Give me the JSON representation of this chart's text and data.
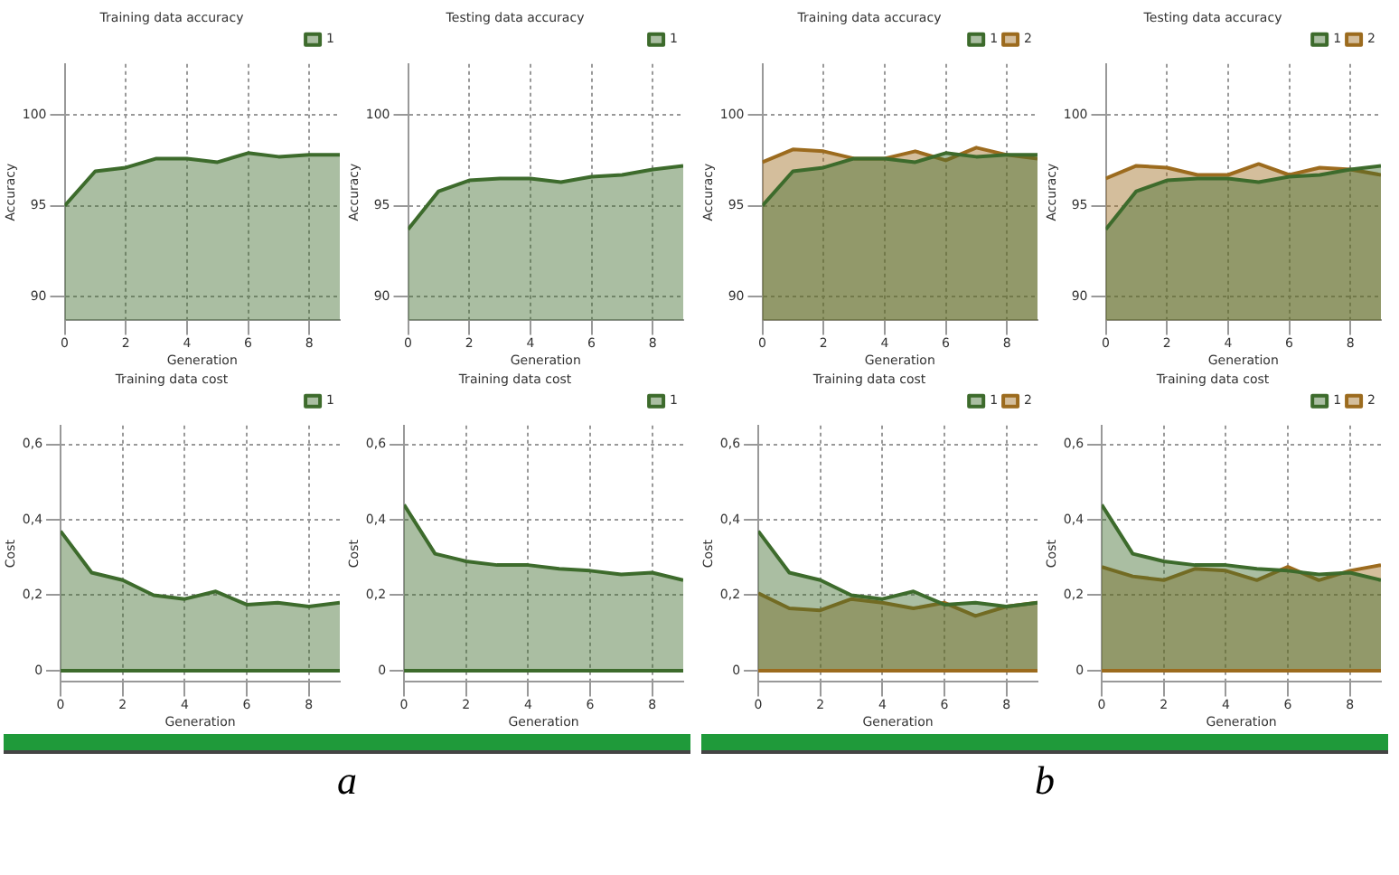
{
  "chart_data": [
    {
      "type": "area",
      "title": "Training data accuracy",
      "xlabel": "Generation",
      "ylabel": "Accuracy",
      "x": [
        0,
        1,
        2,
        3,
        4,
        5,
        6,
        7,
        8,
        9
      ],
      "xlim": [
        0,
        9
      ],
      "xticks": [
        0,
        2,
        4,
        6,
        8
      ],
      "ylim": [
        88.7,
        102.8
      ],
      "yticks": [
        90,
        95,
        100
      ],
      "grid": true,
      "legend": "top right",
      "marker": "none",
      "series": [
        {
          "name": "1",
          "color": "#3d6b2c",
          "values": [
            95.0,
            96.9,
            97.1,
            97.6,
            97.6,
            97.4,
            97.9,
            97.7,
            97.8,
            97.8
          ]
        }
      ]
    },
    {
      "type": "area",
      "title": "Testing data accuracy",
      "xlabel": "Generation",
      "ylabel": "Accuracy",
      "x": [
        0,
        1,
        2,
        3,
        4,
        5,
        6,
        7,
        8,
        9
      ],
      "xlim": [
        0,
        9
      ],
      "xticks": [
        0,
        2,
        4,
        6,
        8
      ],
      "ylim": [
        88.7,
        102.8
      ],
      "yticks": [
        90,
        95,
        100
      ],
      "grid": true,
      "legend": "top right",
      "marker": "none",
      "series": [
        {
          "name": "1",
          "color": "#3d6b2c",
          "values": [
            93.7,
            95.8,
            96.4,
            96.5,
            96.5,
            96.3,
            96.6,
            96.7,
            97.0,
            97.2
          ]
        }
      ]
    },
    {
      "type": "area",
      "title": "Training data cost",
      "xlabel": "Generation",
      "ylabel": "Cost",
      "x": [
        0,
        1,
        2,
        3,
        4,
        5,
        6,
        7,
        8,
        9
      ],
      "xlim": [
        0,
        9
      ],
      "xticks": [
        0,
        2,
        4,
        6,
        8
      ],
      "ylim": [
        -0.03,
        0.65
      ],
      "yticks": [
        0,
        {
          "value": 0.2,
          "label": "0,2"
        },
        {
          "value": 0.4,
          "label": "0,4"
        },
        {
          "value": 0.6,
          "label": "0,6"
        }
      ],
      "grid": true,
      "legend": "top right",
      "marker": "none",
      "ref_lines": [
        {
          "axis": "y",
          "value": 0,
          "color": "#3d6b2c"
        }
      ],
      "annotations": [
        "a"
      ],
      "series": [
        {
          "name": "1",
          "color": "#3d6b2c",
          "values": [
            0.37,
            0.26,
            0.24,
            0.2,
            0.19,
            0.21,
            0.175,
            0.18,
            0.17,
            0.18
          ]
        }
      ]
    },
    {
      "type": "area",
      "title": "Training data cost",
      "xlabel": "Generation",
      "ylabel": "Cost",
      "x": [
        0,
        1,
        2,
        3,
        4,
        5,
        6,
        7,
        8,
        9
      ],
      "xlim": [
        0,
        9
      ],
      "xticks": [
        0,
        2,
        4,
        6,
        8
      ],
      "ylim": [
        -0.03,
        0.65
      ],
      "yticks": [
        0,
        {
          "value": 0.2,
          "label": "0,2"
        },
        {
          "value": 0.4,
          "label": "0,4"
        },
        {
          "value": 0.6,
          "label": "0,6"
        }
      ],
      "grid": true,
      "legend": "top right",
      "marker": "none",
      "ref_lines": [
        {
          "axis": "y",
          "value": 0,
          "color": "#3d6b2c"
        }
      ],
      "series": [
        {
          "name": "1",
          "color": "#3d6b2c",
          "values": [
            0.44,
            0.31,
            0.29,
            0.28,
            0.28,
            0.27,
            0.265,
            0.255,
            0.26,
            0.24
          ]
        }
      ]
    },
    {
      "type": "area",
      "title": "Training data accuracy",
      "xlabel": "Generation",
      "ylabel": "Accuracy",
      "x": [
        0,
        1,
        2,
        3,
        4,
        5,
        6,
        7,
        8,
        9
      ],
      "xlim": [
        0,
        9
      ],
      "xticks": [
        0,
        2,
        4,
        6,
        8
      ],
      "ylim": [
        88.7,
        102.8
      ],
      "yticks": [
        90,
        95,
        100
      ],
      "grid": true,
      "legend": "top right",
      "marker": "none",
      "series": [
        {
          "name": "1",
          "color": "#3d6b2c",
          "values": [
            95.0,
            96.9,
            97.1,
            97.6,
            97.6,
            97.4,
            97.9,
            97.7,
            97.8,
            97.8
          ]
        },
        {
          "name": "2",
          "color": "#9c6b1e",
          "values": [
            97.4,
            98.1,
            98.0,
            97.6,
            97.6,
            98.0,
            97.5,
            98.2,
            97.8,
            97.6
          ]
        }
      ]
    },
    {
      "type": "area",
      "title": "Testing data accuracy",
      "xlabel": "Generation",
      "ylabel": "Accuracy",
      "x": [
        0,
        1,
        2,
        3,
        4,
        5,
        6,
        7,
        8,
        9
      ],
      "xlim": [
        0,
        9
      ],
      "xticks": [
        0,
        2,
        4,
        6,
        8
      ],
      "ylim": [
        88.7,
        102.8
      ],
      "yticks": [
        90,
        95,
        100
      ],
      "grid": true,
      "legend": "top right",
      "marker": "none",
      "series": [
        {
          "name": "1",
          "color": "#3d6b2c",
          "values": [
            93.7,
            95.8,
            96.4,
            96.5,
            96.5,
            96.3,
            96.6,
            96.7,
            97.0,
            97.2
          ]
        },
        {
          "name": "2",
          "color": "#9c6b1e",
          "values": [
            96.5,
            97.2,
            97.1,
            96.7,
            96.7,
            97.3,
            96.7,
            97.1,
            97.0,
            96.7
          ]
        }
      ]
    },
    {
      "type": "area",
      "title": "Training data cost",
      "xlabel": "Generation",
      "ylabel": "Cost",
      "x": [
        0,
        1,
        2,
        3,
        4,
        5,
        6,
        7,
        8,
        9
      ],
      "xlim": [
        0,
        9
      ],
      "xticks": [
        0,
        2,
        4,
        6,
        8
      ],
      "ylim": [
        -0.03,
        0.65
      ],
      "yticks": [
        0,
        {
          "value": 0.2,
          "label": "0,2"
        },
        {
          "value": 0.4,
          "label": "0,4"
        },
        {
          "value": 0.6,
          "label": "0,6"
        }
      ],
      "grid": true,
      "legend": "top right",
      "marker": "none",
      "ref_lines": [
        {
          "axis": "y",
          "value": 0,
          "color": "#9c6b1e"
        }
      ],
      "annotations": [
        "b"
      ],
      "series": [
        {
          "name": "1",
          "color": "#3d6b2c",
          "values": [
            0.37,
            0.26,
            0.24,
            0.2,
            0.19,
            0.21,
            0.175,
            0.18,
            0.17,
            0.18
          ]
        },
        {
          "name": "2",
          "color": "#9c6b1e",
          "values": [
            0.205,
            0.165,
            0.16,
            0.19,
            0.18,
            0.165,
            0.18,
            0.145,
            0.17,
            0.18
          ]
        }
      ]
    },
    {
      "type": "area",
      "title": "Training data cost",
      "xlabel": "Generation",
      "ylabel": "Cost",
      "x": [
        0,
        1,
        2,
        3,
        4,
        5,
        6,
        7,
        8,
        9
      ],
      "xlim": [
        0,
        9
      ],
      "xticks": [
        0,
        2,
        4,
        6,
        8
      ],
      "ylim": [
        -0.03,
        0.65
      ],
      "yticks": [
        0,
        {
          "value": 0.2,
          "label": "0,2"
        },
        {
          "value": 0.4,
          "label": "0,4"
        },
        {
          "value": 0.6,
          "label": "0,6"
        }
      ],
      "grid": true,
      "legend": "top right",
      "marker": "none",
      "ref_lines": [
        {
          "axis": "y",
          "value": 0,
          "color": "#9c6b1e"
        }
      ],
      "series": [
        {
          "name": "1",
          "color": "#3d6b2c",
          "values": [
            0.44,
            0.31,
            0.29,
            0.28,
            0.28,
            0.27,
            0.265,
            0.255,
            0.26,
            0.24
          ]
        },
        {
          "name": "2",
          "color": "#9c6b1e",
          "values": [
            0.275,
            0.25,
            0.24,
            0.27,
            0.265,
            0.24,
            0.275,
            0.24,
            0.265,
            0.28
          ]
        }
      ]
    }
  ]
}
